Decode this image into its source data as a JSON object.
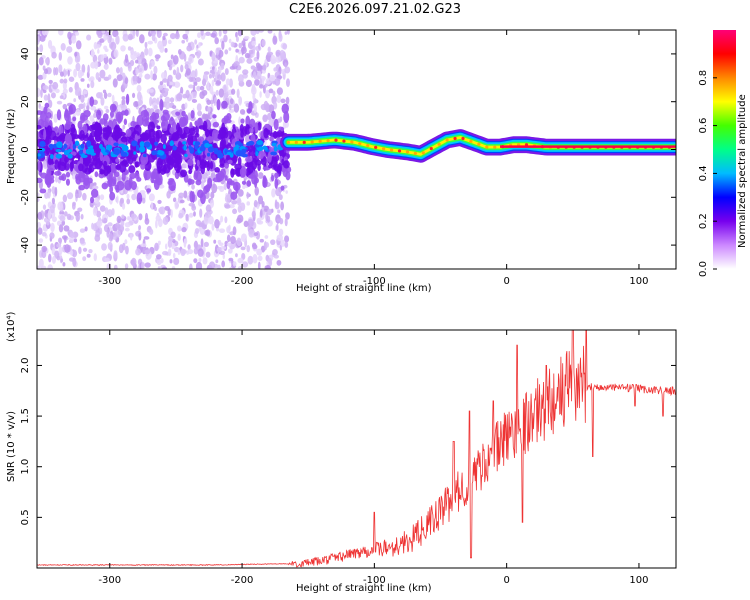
{
  "title": "C2E6.2026.097.21.02.G23",
  "chart_data": [
    {
      "type": "heatmap",
      "xlabel": "Height of straight line (km)",
      "ylabel": "Frequency (Hz)",
      "xlim": [
        -355,
        128
      ],
      "ylim": [
        -50,
        50
      ],
      "xticks": [
        -300,
        -200,
        -100,
        0,
        100
      ],
      "yticks": [
        -40,
        -20,
        0,
        20,
        40
      ],
      "colorbar": {
        "label": "Normalized spectral amplitude",
        "range": [
          0.0,
          1.0
        ],
        "ticks": [
          "0.0",
          "0.2",
          "0.4",
          "0.6",
          "0.8"
        ],
        "colors": [
          "#ffffff",
          "#cc88ff",
          "#7700ee",
          "#0000ff",
          "#00bbff",
          "#00ff88",
          "#44ff00",
          "#ffff00",
          "#ff8800",
          "#ff0000",
          "#ff0077"
        ]
      },
      "ridge": {
        "x": [
          -165,
          -150,
          -130,
          -115,
          -100,
          -90,
          -75,
          -65,
          -55,
          -45,
          -35,
          -25,
          -15,
          -5,
          5,
          15,
          30,
          50,
          80,
          128
        ],
        "y": [
          3,
          3,
          4,
          3,
          1,
          0,
          -1,
          -2,
          1,
          4,
          5,
          3,
          1,
          1,
          2,
          2,
          1,
          1,
          1,
          1
        ]
      }
    },
    {
      "type": "line",
      "xlabel": "Height of straight line (km)",
      "ylabel": "SNR (10 * v/v)",
      "scale_note": "(x10⁴)",
      "xlim": [
        -355,
        128
      ],
      "ylim": [
        0,
        2.35
      ],
      "xticks": [
        -300,
        -200,
        -100,
        0,
        100
      ],
      "yticks": [
        "0.5",
        "1.0",
        "1.5",
        "2.0"
      ],
      "color": "#ee3333",
      "series": {
        "x": [
          -355,
          -330,
          -300,
          -260,
          -220,
          -180,
          -160,
          -150,
          -140,
          -130,
          -120,
          -110,
          -100,
          -90,
          -80,
          -70,
          -60,
          -50,
          -40,
          -30,
          -20,
          -10,
          0,
          10,
          20,
          30,
          40,
          50,
          60,
          70,
          80,
          90,
          100,
          110,
          120,
          128
        ],
        "y": [
          0.03,
          0.03,
          0.03,
          0.03,
          0.03,
          0.04,
          0.04,
          0.05,
          0.07,
          0.1,
          0.13,
          0.16,
          0.18,
          0.2,
          0.23,
          0.3,
          0.42,
          0.55,
          0.7,
          0.85,
          1.0,
          1.15,
          1.3,
          1.4,
          1.5,
          1.62,
          1.72,
          1.82,
          1.8,
          1.78,
          1.78,
          1.78,
          1.77,
          1.76,
          1.75,
          1.75
        ],
        "spikes": [
          {
            "x": -100,
            "y": 0.55
          },
          {
            "x": -40,
            "y": 1.25
          },
          {
            "x": -28,
            "y": 1.55
          },
          {
            "x": -27,
            "y": 0.1
          },
          {
            "x": -10,
            "y": 1.65
          },
          {
            "x": 8,
            "y": 2.2
          },
          {
            "x": 12,
            "y": 0.45
          },
          {
            "x": 30,
            "y": 2.0
          },
          {
            "x": 50,
            "y": 2.35
          },
          {
            "x": 60,
            "y": 2.35
          },
          {
            "x": 65,
            "y": 1.1
          },
          {
            "x": 97,
            "y": 1.6
          },
          {
            "x": 118,
            "y": 1.5
          }
        ]
      }
    }
  ]
}
